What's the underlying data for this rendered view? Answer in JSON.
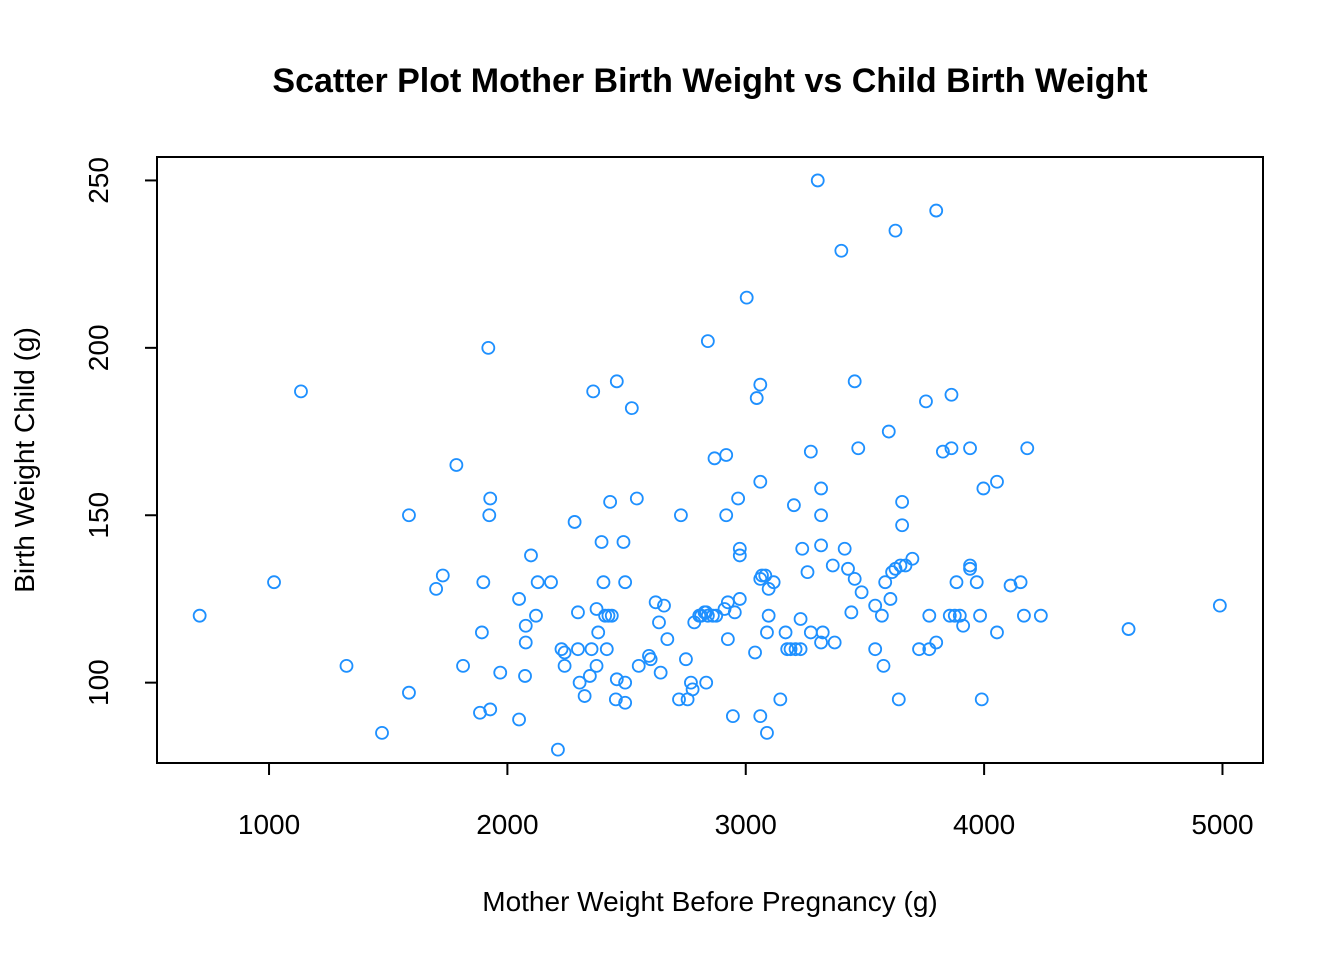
{
  "chart_data": {
    "type": "scatter",
    "title": "Scatter Plot Mother Birth Weight vs Child Birth Weight",
    "xlabel": "Mother Weight Before Pregnancy (g)",
    "ylabel": "Birth Weight Child (g)",
    "xlim": [
      530,
      5170
    ],
    "ylim": [
      76,
      257
    ],
    "xticks": [
      1000,
      2000,
      3000,
      4000,
      5000
    ],
    "yticks": [
      100,
      150,
      200,
      250
    ],
    "xtick_labels": [
      "1000",
      "2000",
      "3000",
      "4000",
      "5000"
    ],
    "ytick_labels": [
      "100",
      "150",
      "200",
      "250"
    ],
    "grid": false,
    "legend": "none",
    "point_color": "#1E90FF",
    "point_shape": "open-circle",
    "points": [
      [
        709,
        120
      ],
      [
        1021,
        130
      ],
      [
        1134,
        187
      ],
      [
        1325,
        105
      ],
      [
        1474,
        85
      ],
      [
        1587,
        150
      ],
      [
        1587,
        97
      ],
      [
        1701,
        128
      ],
      [
        1729,
        132
      ],
      [
        1786,
        165
      ],
      [
        1814,
        105
      ],
      [
        1885,
        91
      ],
      [
        1893,
        115
      ],
      [
        1899,
        130
      ],
      [
        1920,
        200
      ],
      [
        1924,
        150
      ],
      [
        1928,
        155
      ],
      [
        1928,
        92
      ],
      [
        1970,
        103
      ],
      [
        2049,
        89
      ],
      [
        2049,
        125
      ],
      [
        2074,
        102
      ],
      [
        2077,
        117
      ],
      [
        2077,
        112
      ],
      [
        2099,
        138
      ],
      [
        2120,
        120
      ],
      [
        2127,
        130
      ],
      [
        2183,
        130
      ],
      [
        2212,
        80
      ],
      [
        2227,
        110
      ],
      [
        2240,
        105
      ],
      [
        2240,
        109
      ],
      [
        2282,
        148
      ],
      [
        2296,
        121
      ],
      [
        2296,
        110
      ],
      [
        2303,
        100
      ],
      [
        2324,
        96
      ],
      [
        2346,
        102
      ],
      [
        2353,
        110
      ],
      [
        2360,
        187
      ],
      [
        2374,
        122
      ],
      [
        2374,
        105
      ],
      [
        2381,
        115
      ],
      [
        2395,
        142
      ],
      [
        2403,
        130
      ],
      [
        2410,
        120
      ],
      [
        2417,
        110
      ],
      [
        2424,
        120
      ],
      [
        2431,
        154
      ],
      [
        2438,
        120
      ],
      [
        2455,
        95
      ],
      [
        2459,
        190
      ],
      [
        2459,
        101
      ],
      [
        2487,
        142
      ],
      [
        2494,
        130
      ],
      [
        2494,
        100
      ],
      [
        2494,
        94
      ],
      [
        2522,
        182
      ],
      [
        2543,
        155
      ],
      [
        2551,
        105
      ],
      [
        2594,
        108
      ],
      [
        2601,
        107
      ],
      [
        2622,
        124
      ],
      [
        2636,
        118
      ],
      [
        2643,
        103
      ],
      [
        2657,
        123
      ],
      [
        2671,
        113
      ],
      [
        2720,
        95
      ],
      [
        2728,
        150
      ],
      [
        2749,
        107
      ],
      [
        2756,
        95
      ],
      [
        2770,
        100
      ],
      [
        2777,
        98
      ],
      [
        2784,
        118
      ],
      [
        2805,
        120
      ],
      [
        2813,
        120
      ],
      [
        2827,
        121
      ],
      [
        2834,
        121
      ],
      [
        2834,
        100
      ],
      [
        2841,
        202
      ],
      [
        2841,
        120
      ],
      [
        2862,
        120
      ],
      [
        2869,
        167
      ],
      [
        2876,
        120
      ],
      [
        2911,
        122
      ],
      [
        2918,
        150
      ],
      [
        2918,
        168
      ],
      [
        2925,
        124
      ],
      [
        2925,
        113
      ],
      [
        2946,
        90
      ],
      [
        2954,
        121
      ],
      [
        2968,
        155
      ],
      [
        2975,
        140
      ],
      [
        2975,
        138
      ],
      [
        2975,
        125
      ],
      [
        3004,
        215
      ],
      [
        3039,
        109
      ],
      [
        3046,
        185
      ],
      [
        3061,
        160
      ],
      [
        3061,
        189
      ],
      [
        3061,
        131
      ],
      [
        3061,
        90
      ],
      [
        3068,
        132
      ],
      [
        3082,
        132
      ],
      [
        3089,
        115
      ],
      [
        3089,
        85
      ],
      [
        3096,
        120
      ],
      [
        3096,
        128
      ],
      [
        3117,
        130
      ],
      [
        3145,
        95
      ],
      [
        3167,
        115
      ],
      [
        3174,
        110
      ],
      [
        3188,
        110
      ],
      [
        3202,
        153
      ],
      [
        3209,
        110
      ],
      [
        3230,
        119
      ],
      [
        3230,
        110
      ],
      [
        3237,
        140
      ],
      [
        3259,
        133
      ],
      [
        3273,
        169
      ],
      [
        3273,
        115
      ],
      [
        3302,
        250
      ],
      [
        3316,
        158
      ],
      [
        3316,
        150
      ],
      [
        3316,
        141
      ],
      [
        3316,
        112
      ],
      [
        3323,
        115
      ],
      [
        3365,
        135
      ],
      [
        3373,
        112
      ],
      [
        3401,
        229
      ],
      [
        3415,
        140
      ],
      [
        3429,
        134
      ],
      [
        3443,
        121
      ],
      [
        3457,
        190
      ],
      [
        3457,
        131
      ],
      [
        3472,
        170
      ],
      [
        3486,
        127
      ],
      [
        3543,
        123
      ],
      [
        3543,
        110
      ],
      [
        3571,
        120
      ],
      [
        3578,
        105
      ],
      [
        3585,
        130
      ],
      [
        3600,
        175
      ],
      [
        3607,
        125
      ],
      [
        3614,
        133
      ],
      [
        3628,
        235
      ],
      [
        3628,
        134
      ],
      [
        3642,
        95
      ],
      [
        3649,
        135
      ],
      [
        3656,
        154
      ],
      [
        3656,
        147
      ],
      [
        3670,
        135
      ],
      [
        3699,
        137
      ],
      [
        3727,
        110
      ],
      [
        3756,
        184
      ],
      [
        3770,
        120
      ],
      [
        3770,
        110
      ],
      [
        3799,
        241
      ],
      [
        3799,
        112
      ],
      [
        3827,
        169
      ],
      [
        3856,
        120
      ],
      [
        3863,
        170
      ],
      [
        3863,
        186
      ],
      [
        3877,
        120
      ],
      [
        3884,
        130
      ],
      [
        3898,
        120
      ],
      [
        3912,
        117
      ],
      [
        3941,
        170
      ],
      [
        3941,
        135
      ],
      [
        3941,
        134
      ],
      [
        3969,
        130
      ],
      [
        3983,
        120
      ],
      [
        3990,
        95
      ],
      [
        3997,
        158
      ],
      [
        4054,
        160
      ],
      [
        4054,
        115
      ],
      [
        4111,
        129
      ],
      [
        4153,
        130
      ],
      [
        4167,
        120
      ],
      [
        4181,
        170
      ],
      [
        4238,
        120
      ],
      [
        4606,
        116
      ],
      [
        4989,
        123
      ]
    ]
  }
}
